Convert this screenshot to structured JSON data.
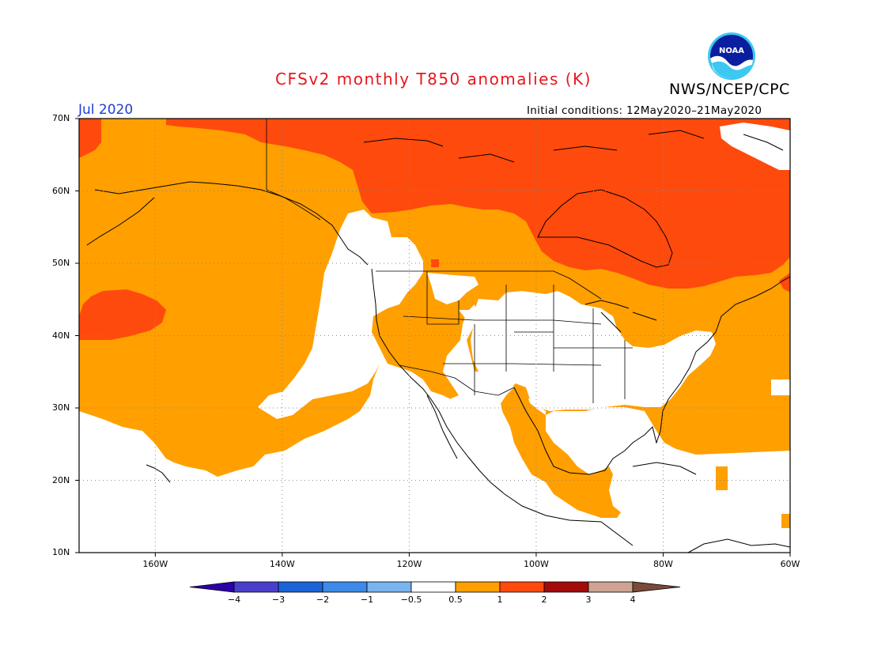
{
  "header": {
    "title": "CFSv2 monthly T850 anomalies (K)",
    "agency": "NWS/NCEP/CPC",
    "logo_text": "NOAA",
    "valid_month": "Jul 2020",
    "initial_conditions": "Initial conditions: 12May2020–21May2020"
  },
  "map": {
    "region": "North America / NE Pacific",
    "projection": "cylindrical lat-lon",
    "lon_range": [
      -172,
      -60
    ],
    "lat_range": [
      10,
      70
    ],
    "lat_ticks": [
      "70N",
      "60N",
      "50N",
      "40N",
      "30N",
      "20N",
      "10N"
    ],
    "lat_values": [
      70,
      60,
      50,
      40,
      30,
      20,
      10
    ],
    "lon_ticks": [
      "160W",
      "140W",
      "120W",
      "100W",
      "80W",
      "60W"
    ],
    "lon_values": [
      -160,
      -140,
      -120,
      -100,
      -80,
      -60
    ],
    "grid": "dotted",
    "anomaly_colors": {
      "0.5-1": "#ff9f00",
      "1-2": "#ff4a0d",
      "below_0.5": "#ffffff"
    }
  },
  "colorbar": {
    "labels": [
      "−4",
      "−3",
      "−2",
      "−1",
      "−0.5",
      "0.5",
      "1",
      "2",
      "3",
      "4"
    ],
    "colors": [
      "#2d00a8",
      "#4a3fcc",
      "#1b64d6",
      "#3d8ae8",
      "#7ab3ef",
      "#ffffff",
      "#ff9f00",
      "#ff4a0d",
      "#a30a0a",
      "#cda393",
      "#7a4a3a"
    ]
  }
}
